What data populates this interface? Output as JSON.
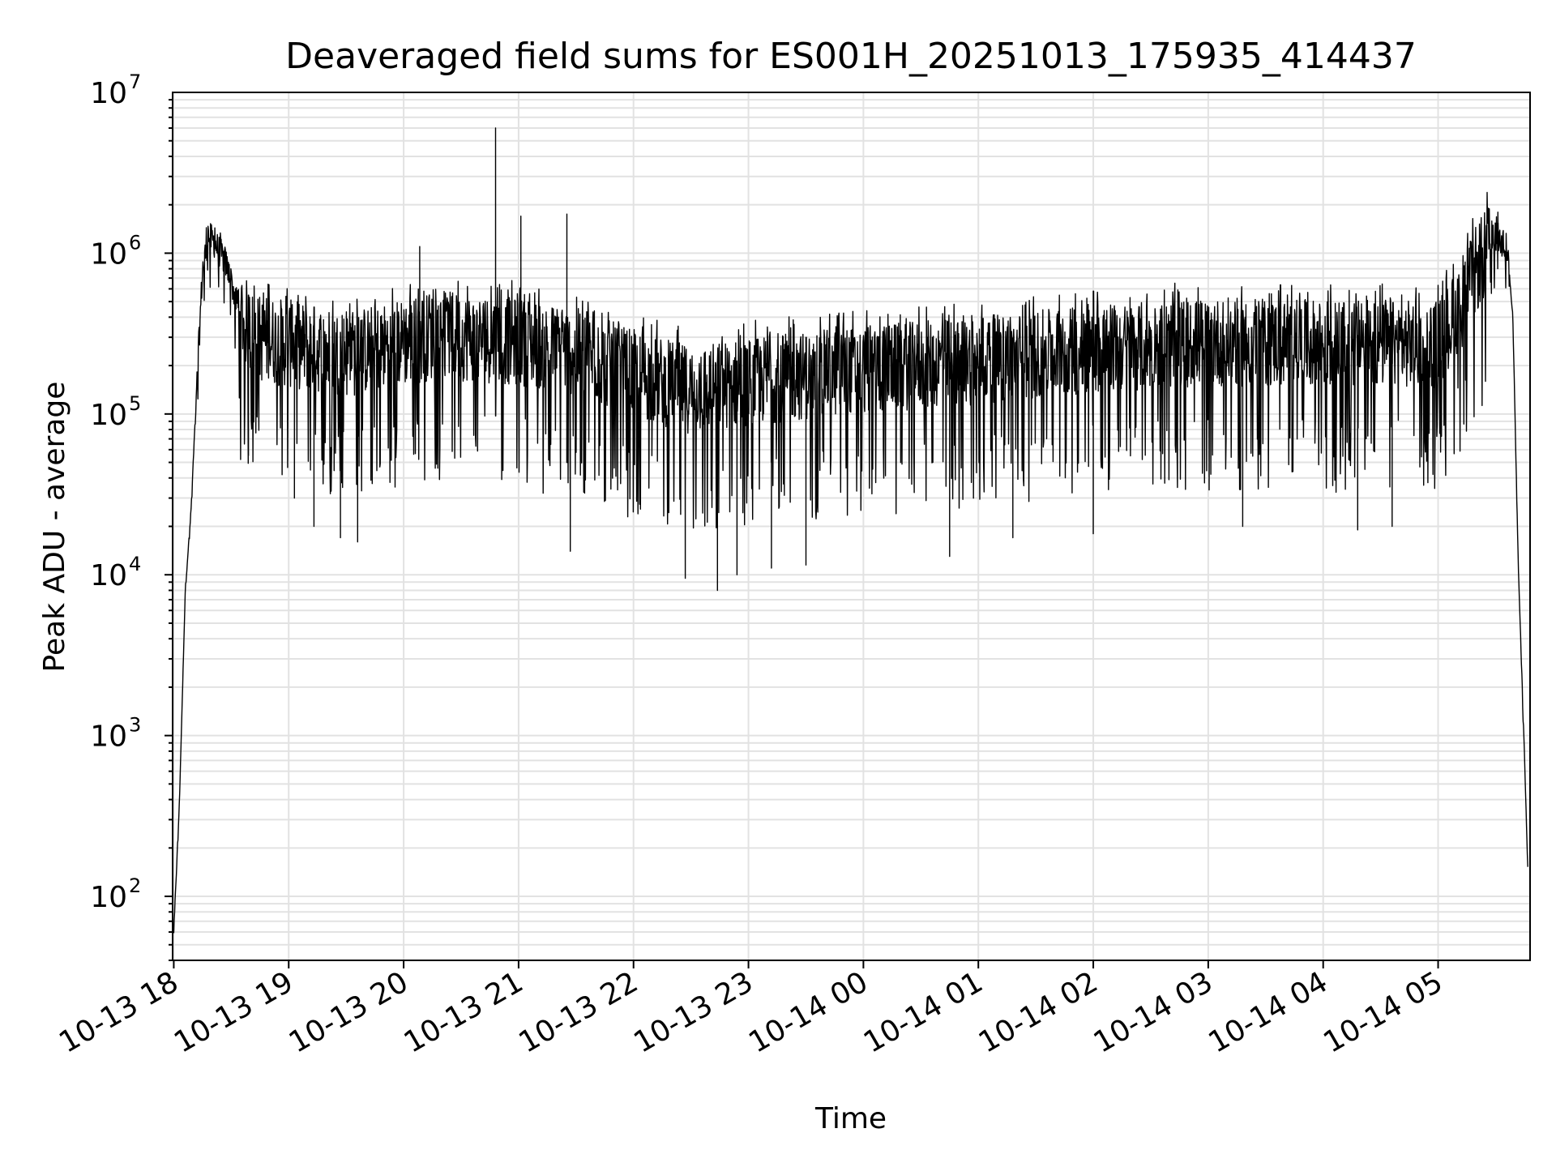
{
  "chart_data": {
    "type": "line",
    "title": "Deaveraged field sums for ES001H_20251013_175935_414437",
    "xlabel": "Time",
    "ylabel": "Peak ADU - average",
    "yscale": "log",
    "ylim": [
      40,
      10000000
    ],
    "xlim_hours": [
      17.99,
      29.8
    ],
    "grid": true,
    "y_ticks": [
      {
        "value": 100,
        "base": "10",
        "exp": "2"
      },
      {
        "value": 1000,
        "base": "10",
        "exp": "3"
      },
      {
        "value": 10000,
        "base": "10",
        "exp": "4"
      },
      {
        "value": 100000,
        "base": "10",
        "exp": "5"
      },
      {
        "value": 1000000,
        "base": "10",
        "exp": "6"
      },
      {
        "value": 10000000,
        "base": "10",
        "exp": "7"
      }
    ],
    "x_ticks": [
      {
        "hour": 18,
        "label": "10-13 18"
      },
      {
        "hour": 19,
        "label": "10-13 19"
      },
      {
        "hour": 20,
        "label": "10-13 20"
      },
      {
        "hour": 21,
        "label": "10-13 21"
      },
      {
        "hour": 22,
        "label": "10-13 22"
      },
      {
        "hour": 23,
        "label": "10-13 23"
      },
      {
        "hour": 24,
        "label": "10-14 00"
      },
      {
        "hour": 25,
        "label": "10-14 01"
      },
      {
        "hour": 26,
        "label": "10-14 02"
      },
      {
        "hour": 27,
        "label": "10-14 03"
      },
      {
        "hour": 28,
        "label": "10-14 04"
      },
      {
        "hour": 29,
        "label": "10-14 05"
      }
    ],
    "series": [
      {
        "name": "Peak ADU - average",
        "color": "#000000",
        "envelope": [
          {
            "t": 18.0,
            "v": 60
          },
          {
            "t": 18.05,
            "v": 400
          },
          {
            "t": 18.1,
            "v": 8000
          },
          {
            "t": 18.15,
            "v": 25000
          },
          {
            "t": 18.2,
            "v": 150000
          },
          {
            "t": 18.25,
            "v": 800000
          },
          {
            "t": 18.3,
            "v": 1300000
          },
          {
            "t": 18.35,
            "v": 1200000
          },
          {
            "t": 18.45,
            "v": 900000
          },
          {
            "t": 18.55,
            "v": 500000
          },
          {
            "t": 18.7,
            "v": 320000
          },
          {
            "t": 19.5,
            "v": 250000
          },
          {
            "t": 20.3,
            "v": 330000
          },
          {
            "t": 21.0,
            "v": 300000
          },
          {
            "t": 21.5,
            "v": 260000
          },
          {
            "t": 22.0,
            "v": 190000
          },
          {
            "t": 22.5,
            "v": 150000
          },
          {
            "t": 23.0,
            "v": 170000
          },
          {
            "t": 24.0,
            "v": 200000
          },
          {
            "t": 25.0,
            "v": 230000
          },
          {
            "t": 26.0,
            "v": 270000
          },
          {
            "t": 27.0,
            "v": 300000
          },
          {
            "t": 28.0,
            "v": 290000
          },
          {
            "t": 29.0,
            "v": 290000
          },
          {
            "t": 29.2,
            "v": 500000
          },
          {
            "t": 29.35,
            "v": 900000
          },
          {
            "t": 29.5,
            "v": 1300000
          },
          {
            "t": 29.6,
            "v": 1100000
          },
          {
            "t": 29.65,
            "v": 400000
          },
          {
            "t": 29.7,
            "v": 10000
          },
          {
            "t": 29.75,
            "v": 800
          },
          {
            "t": 29.78,
            "v": 150
          }
        ],
        "noise_window": [
          18.55,
          29.45
        ],
        "spikes": [
          {
            "t": 20.8,
            "v": 6000000
          },
          {
            "t": 21.02,
            "v": 1700000
          },
          {
            "t": 21.42,
            "v": 1750000
          },
          {
            "t": 20.14,
            "v": 1100000
          },
          {
            "t": 29.52,
            "v": 1800000
          }
        ],
        "dips": [
          {
            "t": 18.65,
            "v": 55000
          },
          {
            "t": 19.05,
            "v": 30000
          },
          {
            "t": 19.22,
            "v": 20000
          },
          {
            "t": 19.45,
            "v": 17000
          },
          {
            "t": 19.6,
            "v": 16000
          },
          {
            "t": 21.45,
            "v": 14000
          },
          {
            "t": 22.45,
            "v": 9500
          },
          {
            "t": 22.73,
            "v": 8000
          },
          {
            "t": 22.9,
            "v": 10000
          },
          {
            "t": 23.2,
            "v": 11000
          },
          {
            "t": 23.5,
            "v": 11500
          },
          {
            "t": 24.75,
            "v": 13000
          },
          {
            "t": 25.3,
            "v": 17000
          },
          {
            "t": 26.0,
            "v": 18000
          },
          {
            "t": 27.3,
            "v": 20000
          },
          {
            "t": 28.3,
            "v": 19000
          },
          {
            "t": 28.6,
            "v": 20000
          }
        ]
      }
    ]
  }
}
